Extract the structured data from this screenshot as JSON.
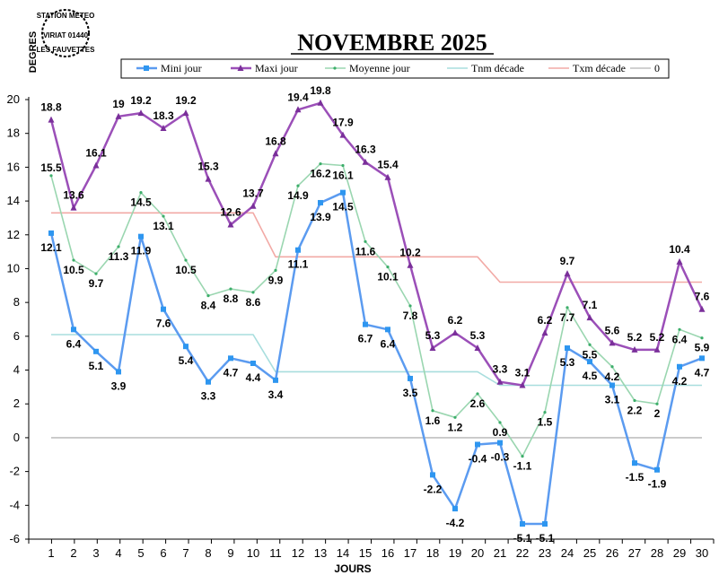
{
  "stamp": {
    "line1": "STATION METEO",
    "line2": "VIRIAT 01440",
    "line3": "LES FAUVETTES"
  },
  "chart_data": {
    "type": "line",
    "title": "NOVEMBRE 2025",
    "xlabel": "JOURS",
    "ylabel": "DEGRES",
    "ylim": [
      -6,
      20
    ],
    "yticks": [
      -6,
      -4,
      -2,
      0,
      2,
      4,
      6,
      8,
      10,
      12,
      14,
      16,
      18,
      20
    ],
    "x": [
      1,
      2,
      3,
      4,
      5,
      6,
      7,
      8,
      9,
      10,
      11,
      12,
      13,
      14,
      15,
      16,
      17,
      18,
      19,
      20,
      21,
      22,
      23,
      24,
      25,
      26,
      27,
      28,
      29,
      30
    ],
    "grid": false,
    "legend_placement": "top",
    "series": [
      {
        "name": "Mini jour",
        "color": "#5b9bf0",
        "values": [
          12.1,
          6.4,
          5.1,
          3.9,
          11.9,
          7.6,
          5.4,
          3.3,
          4.7,
          4.4,
          3.4,
          11.1,
          13.9,
          14.5,
          6.7,
          6.4,
          3.5,
          -2.2,
          -4.2,
          -0.4,
          -0.3,
          -5.1,
          -5.1,
          5.3,
          4.5,
          3.1,
          -1.5,
          -1.9,
          4.2,
          4.7
        ]
      },
      {
        "name": "Maxi jour",
        "color": "#9b4fb8",
        "values": [
          18.8,
          13.6,
          16.1,
          19,
          19.2,
          18.3,
          19.2,
          15.3,
          12.6,
          13.7,
          16.8,
          19.4,
          19.8,
          17.9,
          16.3,
          15.4,
          10.2,
          5.3,
          6.2,
          5.3,
          3.3,
          3.1,
          6.2,
          9.7,
          7.1,
          5.6,
          5.2,
          5.2,
          10.4,
          7.6
        ]
      },
      {
        "name": "Moyenne jour",
        "color": "#9ad6b0",
        "values": [
          15.5,
          10.5,
          9.7,
          11.3,
          14.5,
          13.1,
          10.5,
          8.4,
          8.8,
          8.6,
          9.9,
          14.9,
          16.2,
          16.1,
          11.6,
          10.1,
          7.8,
          1.6,
          1.2,
          2.6,
          0.9,
          -1.1,
          1.5,
          7.7,
          5.5,
          4.2,
          2.2,
          2,
          6.4,
          5.9
        ]
      },
      {
        "name": "Tnm décade",
        "color": "#a8dede",
        "values": [
          6.1,
          6.1,
          6.1,
          6.1,
          6.1,
          6.1,
          6.1,
          6.1,
          6.1,
          6.1,
          3.9,
          3.9,
          3.9,
          3.9,
          3.9,
          3.9,
          3.9,
          3.9,
          3.9,
          3.9,
          3.1,
          3.1,
          3.1,
          3.1,
          3.1,
          3.1,
          3.1,
          3.1,
          3.1,
          3.1
        ]
      },
      {
        "name": "Txm décade",
        "color": "#f2aaa6",
        "values": [
          13.3,
          13.3,
          13.3,
          13.3,
          13.3,
          13.3,
          13.3,
          13.3,
          13.3,
          13.3,
          10.7,
          10.7,
          10.7,
          10.7,
          10.7,
          10.7,
          10.7,
          10.7,
          10.7,
          10.7,
          9.2,
          9.2,
          9.2,
          9.2,
          9.2,
          9.2,
          9.2,
          9.2,
          9.2,
          9.2
        ]
      },
      {
        "name": "0",
        "color": "#c0c0c0",
        "values": [
          0,
          0,
          0,
          0,
          0,
          0,
          0,
          0,
          0,
          0,
          0,
          0,
          0,
          0,
          0,
          0,
          0,
          0,
          0,
          0,
          0,
          0,
          0,
          0,
          0,
          0,
          0,
          0,
          0,
          0
        ]
      }
    ]
  }
}
